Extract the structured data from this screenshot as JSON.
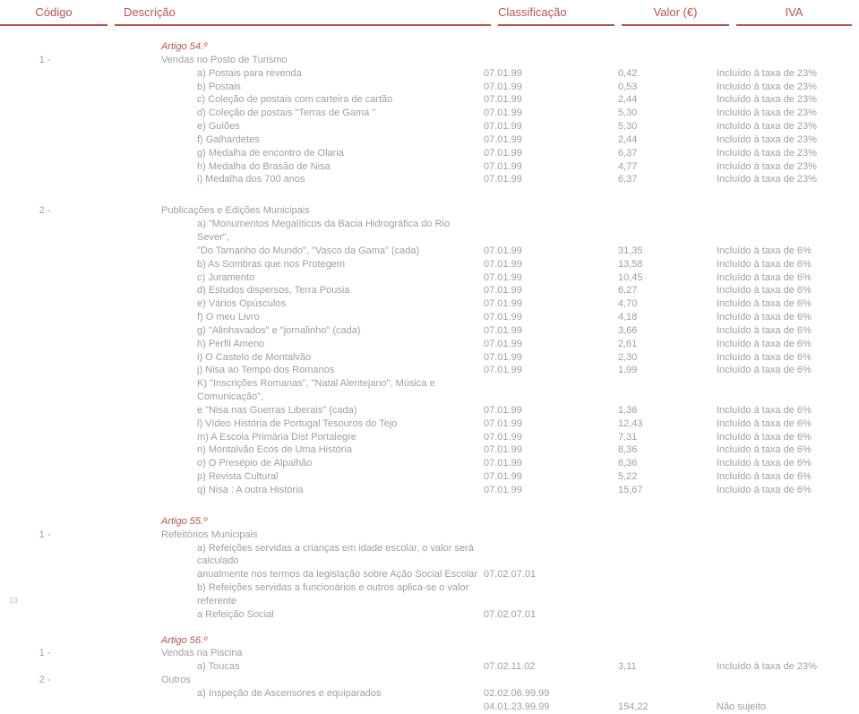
{
  "headers": {
    "codigo": "Código",
    "descricao": "Descrição",
    "class": "Classificação",
    "valor": "Valor (€)",
    "iva": "IVA"
  },
  "page_number": "13",
  "tax23": "Incluído à taxa de 23%",
  "tax6": "Incluído à taxa de 6%",
  "nao": "Não sujeito",
  "art54": {
    "title": "Artigo 54.º",
    "sub": "Vendas no Posto de Turismo",
    "num": "1 -",
    "rows": [
      {
        "d": "a) Postais para revenda",
        "c": "07.01.99",
        "v": "0,42",
        "t": "23"
      },
      {
        "d": "b) Postais",
        "c": "07.01.99",
        "v": "0,53",
        "t": "23"
      },
      {
        "d": "c) Coleção de postais com carteira de cartão",
        "c": "07.01.99",
        "v": "2,44",
        "t": "23"
      },
      {
        "d": "d) Coleção de postais \"Terras de Gama \"",
        "c": "07.01.99",
        "v": "5,30",
        "t": "23"
      },
      {
        "d": "e) Guiões",
        "c": "07.01.99",
        "v": "5,30",
        "t": "23"
      },
      {
        "d": "f) Galhardetes",
        "c": "07.01.99",
        "v": "2,44",
        "t": "23"
      },
      {
        "d": "g) Medalha de encontro de Olaria",
        "c": "07.01.99",
        "v": "6,37",
        "t": "23"
      },
      {
        "d": "h) Medalha do Brasão de Nisa",
        "c": "07.01.99",
        "v": "4,77",
        "t": "23"
      },
      {
        "d": "i) Medalha dos 700 anos",
        "c": "07.01.99",
        "v": "6,37",
        "t": "23"
      }
    ]
  },
  "pub": {
    "num": "2 -",
    "sub": "Publicações e Edições Municipais",
    "rows": [
      {
        "d": "a) \"Monumentos Megalíticos da Bacia Hidrográfica do Rio Sever\","
      },
      {
        "d": "\"Do Tamanho do Mundo\", \"Vasco da Gama\" (cada)",
        "c": "07.01.99",
        "v": "31,35",
        "t": "6"
      },
      {
        "d": "b) As Sombras que nos Protegem",
        "c": "07.01.99",
        "v": "13,58",
        "t": "6"
      },
      {
        "d": "c) Juramento",
        "c": "07.01.99",
        "v": "10,45",
        "t": "6"
      },
      {
        "d": "d) Estudos dispersos, Terra Pousia",
        "c": "07.01.99",
        "v": "6,27",
        "t": "6"
      },
      {
        "d": "e) Vários Opúsculos",
        "c": "07.01.99",
        "v": "4,70",
        "t": "6"
      },
      {
        "d": "f) O meu Livro",
        "c": "07.01.99",
        "v": "4,18",
        "t": "6"
      },
      {
        "d": "g) \"Alinhavados\" e \"jornalinho\" (cada)",
        "c": "07.01.99",
        "v": "3,66",
        "t": "6"
      },
      {
        "d": "h) Perfil Ameno",
        "c": "07.01.99",
        "v": "2,61",
        "t": "6"
      },
      {
        "d": "i) O Castelo de Montalvão",
        "c": "07.01.99",
        "v": "2,30",
        "t": "6"
      },
      {
        "d": "j) Nisa ao Tempo dos Romanos",
        "c": "07.01.99",
        "v": "1,99",
        "t": "6"
      },
      {
        "d": "K) \"Inscrições Romanas\", \"Natal Alentejano\", Música e Comunicação\","
      },
      {
        "d": "e \"Nisa nas Guerras Liberais\" (cada)",
        "c": "07.01.99",
        "v": "1,36",
        "t": "6"
      },
      {
        "d": "l) Vídeo  História de Portugal Tesouros do Tejo",
        "c": "07.01.99",
        "v": "12,43",
        "t": "6"
      },
      {
        "d": "m) A Escola Primária Dist Portalegre",
        "c": "07.01.99",
        "v": "7,31",
        "t": "6"
      },
      {
        "d": "n) Montalvão Ecos de Uma História",
        "c": "07.01.99",
        "v": "8,36",
        "t": "6"
      },
      {
        "d": "o) O Presépio de Alpalhão",
        "c": "07.01.99",
        "v": "8,36",
        "t": "6"
      },
      {
        "d": "p) Revista Cultural",
        "c": "07.01.99",
        "v": "5,22",
        "t": "6"
      },
      {
        "d": "q) Nisa : A outra História",
        "c": "07.01.99",
        "v": "15,67",
        "t": "6"
      }
    ]
  },
  "art55": {
    "title": "Artigo 55.º",
    "num": "1 -",
    "sub": "Refeitórios Municipais",
    "rows": [
      {
        "d": "a) Refeições servidas a crianças em idade escolar, o valor será calculado"
      },
      {
        "d": "anualmente nos termos da legislação sobre Ação Social Escolar",
        "c": "07.02.07.01"
      },
      {
        "d": "b) Refeições servidas a funcionários e outros aplica-se o valor referente"
      },
      {
        "d": "a Refeição Social",
        "c": "07.02.07.01"
      }
    ]
  },
  "art56": {
    "title": "Artigo 56.º",
    "g1": {
      "num": "1 -",
      "sub": "Vendas na Piscina",
      "row": {
        "d": "a) Toucas",
        "c": "07.02.11.02",
        "v": "3,11",
        "t": "23"
      }
    },
    "g2": {
      "num": "2 -",
      "sub": "Outros",
      "rows": [
        {
          "d": "a) Inspeção de Ascensores e equiparados",
          "c": "02.02.06.99.99"
        },
        {
          "d": "",
          "c": "04.01.23.99.99",
          "v": "154,22",
          "t": "nao"
        }
      ]
    }
  }
}
